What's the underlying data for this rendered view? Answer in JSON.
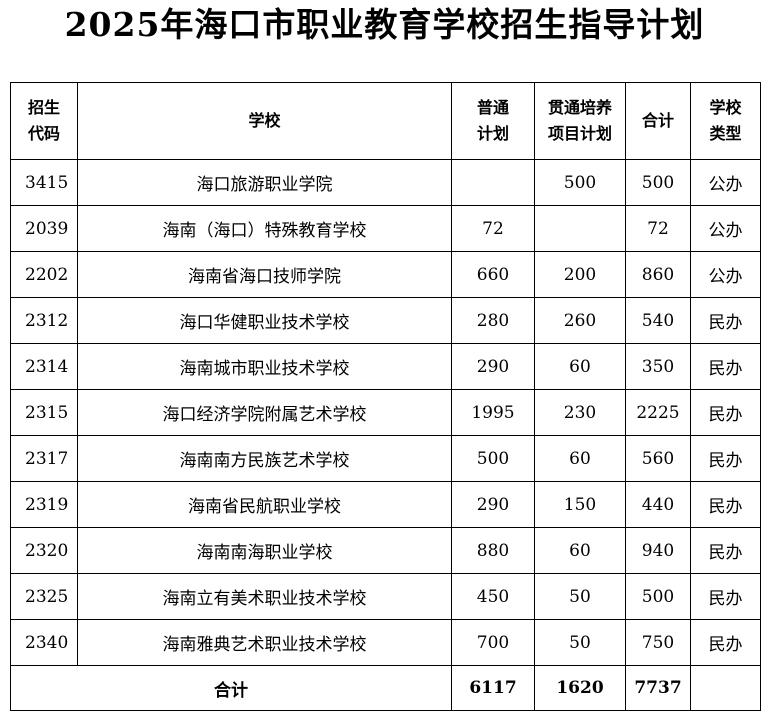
{
  "title": "2025年海口市职业教育学校招生指导计划",
  "table": {
    "headers": [
      [
        "招生",
        "代码"
      ],
      [
        "学校"
      ],
      [
        "普通",
        "计划"
      ],
      [
        "贯通培养",
        "项目计划"
      ],
      [
        "合计"
      ],
      [
        "学校",
        "类型"
      ]
    ],
    "rows": [
      {
        "code": "3415",
        "school": "海口旅游职业学院",
        "general": "",
        "through": "500",
        "total": "500",
        "type": "公办"
      },
      {
        "code": "2039",
        "school": "海南（海口）特殊教育学校",
        "general": "72",
        "through": "",
        "total": "72",
        "type": "公办"
      },
      {
        "code": "2202",
        "school": "海南省海口技师学院",
        "general": "660",
        "through": "200",
        "total": "860",
        "type": "公办"
      },
      {
        "code": "2312",
        "school": "海口华健职业技术学校",
        "general": "280",
        "through": "260",
        "total": "540",
        "type": "民办"
      },
      {
        "code": "2314",
        "school": "海南城市职业技术学校",
        "general": "290",
        "through": "60",
        "total": "350",
        "type": "民办"
      },
      {
        "code": "2315",
        "school": "海口经济学院附属艺术学校",
        "general": "1995",
        "through": "230",
        "total": "2225",
        "type": "民办"
      },
      {
        "code": "2317",
        "school": "海南南方民族艺术学校",
        "general": "500",
        "through": "60",
        "total": "560",
        "type": "民办"
      },
      {
        "code": "2319",
        "school": "海南省民航职业学校",
        "general": "290",
        "through": "150",
        "total": "440",
        "type": "民办"
      },
      {
        "code": "2320",
        "school": "海南南海职业学校",
        "general": "880",
        "through": "60",
        "total": "940",
        "type": "民办"
      },
      {
        "code": "2325",
        "school": "海南立有美术职业技术学校",
        "general": "450",
        "through": "50",
        "total": "500",
        "type": "民办"
      },
      {
        "code": "2340",
        "school": "海南雅典艺术职业技术学校",
        "general": "700",
        "through": "50",
        "total": "750",
        "type": "民办"
      }
    ],
    "total_row": {
      "label": "合计",
      "general": "6117",
      "through": "1620",
      "total": "7737",
      "type": ""
    }
  }
}
